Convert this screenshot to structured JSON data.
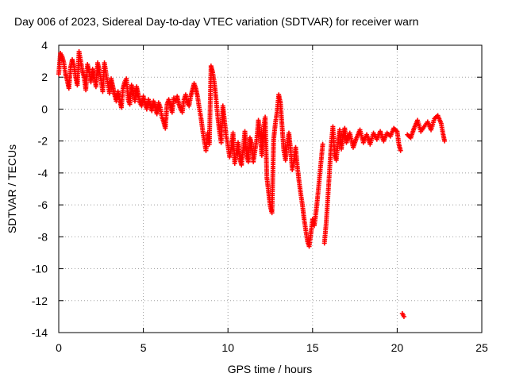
{
  "chart_data": {
    "type": "scatter",
    "title": "Day 006 of 2023, Sidereal Day-to-day VTEC variation (SDTVAR) for receiver warn",
    "xlabel": "GPS time / hours",
    "ylabel": "SDTVAR / TECUs",
    "xlim": [
      0,
      25
    ],
    "ylim": [
      -14,
      4
    ],
    "xticks": [
      "0",
      "5",
      "10",
      "15",
      "20",
      "25"
    ],
    "yticks": [
      "4",
      "2",
      "0",
      "-2",
      "-4",
      "-6",
      "-8",
      "-10",
      "-12",
      "-14"
    ],
    "grid": true,
    "marker": "+",
    "color": "#ff0000",
    "series": [
      {
        "name": "SDTVAR",
        "points": [
          [
            0.0,
            2.2
          ],
          [
            0.1,
            3.5
          ],
          [
            0.2,
            3.3
          ],
          [
            0.3,
            2.9
          ],
          [
            0.4,
            2.2
          ],
          [
            0.5,
            1.8
          ],
          [
            0.6,
            1.3
          ],
          [
            0.7,
            2.6
          ],
          [
            0.8,
            3.1
          ],
          [
            0.9,
            2.7
          ],
          [
            1.0,
            2.0
          ],
          [
            1.1,
            1.5
          ],
          [
            1.2,
            3.6
          ],
          [
            1.3,
            3.0
          ],
          [
            1.4,
            2.4
          ],
          [
            1.5,
            2.0
          ],
          [
            1.6,
            1.2
          ],
          [
            1.7,
            2.8
          ],
          [
            1.8,
            2.3
          ],
          [
            1.9,
            1.7
          ],
          [
            2.0,
            2.5
          ],
          [
            2.1,
            2.0
          ],
          [
            2.2,
            1.4
          ],
          [
            2.3,
            2.9
          ],
          [
            2.4,
            2.4
          ],
          [
            2.5,
            1.8
          ],
          [
            2.6,
            1.1
          ],
          [
            2.7,
            2.9
          ],
          [
            2.8,
            2.2
          ],
          [
            2.9,
            1.6
          ],
          [
            3.0,
            1.0
          ],
          [
            3.1,
            1.9
          ],
          [
            3.2,
            1.4
          ],
          [
            3.3,
            0.9
          ],
          [
            3.4,
            0.5
          ],
          [
            3.5,
            1.1
          ],
          [
            3.6,
            0.6
          ],
          [
            3.7,
            0.1
          ],
          [
            3.8,
            1.3
          ],
          [
            3.9,
            1.7
          ],
          [
            4.0,
            1.9
          ],
          [
            4.1,
            0.6
          ],
          [
            4.2,
            0.3
          ],
          [
            4.3,
            1.5
          ],
          [
            4.4,
            1.1
          ],
          [
            4.5,
            0.5
          ],
          [
            4.6,
            1.4
          ],
          [
            4.7,
            0.9
          ],
          [
            4.8,
            0.4
          ],
          [
            4.9,
            0.2
          ],
          [
            5.0,
            0.8
          ],
          [
            5.1,
            0.4
          ],
          [
            5.2,
            0.0
          ],
          [
            5.3,
            0.6
          ],
          [
            5.4,
            0.3
          ],
          [
            5.5,
            -0.1
          ],
          [
            5.6,
            0.5
          ],
          [
            5.7,
            0.2
          ],
          [
            5.8,
            -0.3
          ],
          [
            5.9,
            0.4
          ],
          [
            6.0,
            0.1
          ],
          [
            6.1,
            -0.5
          ],
          [
            6.2,
            -0.8
          ],
          [
            6.3,
            -1.2
          ],
          [
            6.4,
            0.3
          ],
          [
            6.5,
            0.6
          ],
          [
            6.6,
            0.2
          ],
          [
            6.7,
            -0.2
          ],
          [
            6.8,
            0.7
          ],
          [
            6.9,
            0.5
          ],
          [
            7.0,
            0.8
          ],
          [
            7.1,
            0.3
          ],
          [
            7.2,
            0.0
          ],
          [
            7.3,
            -0.2
          ],
          [
            7.4,
            0.6
          ],
          [
            7.5,
            0.9
          ],
          [
            7.6,
            0.4
          ],
          [
            7.7,
            0.2
          ],
          [
            7.8,
            0.8
          ],
          [
            7.9,
            1.2
          ],
          [
            8.0,
            1.6
          ],
          [
            8.1,
            1.3
          ],
          [
            8.2,
            0.8
          ],
          [
            8.3,
            0.1
          ],
          [
            8.4,
            -0.5
          ],
          [
            8.5,
            -1.3
          ],
          [
            8.6,
            -2.0
          ],
          [
            8.7,
            -2.6
          ],
          [
            8.8,
            -1.5
          ],
          [
            8.9,
            -2.2
          ],
          [
            9.0,
            2.7
          ],
          [
            9.1,
            2.3
          ],
          [
            9.2,
            1.6
          ],
          [
            9.3,
            0.6
          ],
          [
            9.4,
            -0.5
          ],
          [
            9.5,
            -1.4
          ],
          [
            9.6,
            -2.1
          ],
          [
            9.7,
            0.2
          ],
          [
            9.8,
            -0.8
          ],
          [
            9.9,
            -1.7
          ],
          [
            10.0,
            -2.3
          ],
          [
            10.1,
            -3.0
          ],
          [
            10.2,
            -2.4
          ],
          [
            10.3,
            -1.5
          ],
          [
            10.4,
            -3.4
          ],
          [
            10.5,
            -2.7
          ],
          [
            10.6,
            -2.1
          ],
          [
            10.7,
            -3.1
          ],
          [
            10.8,
            -3.5
          ],
          [
            10.9,
            -2.5
          ],
          [
            11.0,
            -1.4
          ],
          [
            11.1,
            -2.8
          ],
          [
            11.2,
            -3.3
          ],
          [
            11.3,
            -1.8
          ],
          [
            11.4,
            -2.2
          ],
          [
            11.5,
            -3.3
          ],
          [
            11.6,
            -2.6
          ],
          [
            11.7,
            -1.9
          ],
          [
            11.8,
            -0.7
          ],
          [
            11.9,
            -1.5
          ],
          [
            12.0,
            -2.9
          ],
          [
            12.1,
            -1.2
          ],
          [
            12.2,
            -0.5
          ],
          [
            12.3,
            -4.3
          ],
          [
            12.4,
            -5.2
          ],
          [
            12.5,
            -6.1
          ],
          [
            12.6,
            -6.5
          ],
          [
            12.7,
            -1.9
          ],
          [
            12.8,
            -0.9
          ],
          [
            12.9,
            -0.2
          ],
          [
            13.0,
            0.9
          ],
          [
            13.1,
            0.4
          ],
          [
            13.2,
            -1.1
          ],
          [
            13.3,
            -2.6
          ],
          [
            13.4,
            -3.2
          ],
          [
            13.5,
            -2.2
          ],
          [
            13.6,
            -1.5
          ],
          [
            13.7,
            -2.5
          ],
          [
            13.8,
            -3.8
          ],
          [
            13.9,
            -3.2
          ],
          [
            14.0,
            -2.4
          ],
          [
            14.1,
            -3.6
          ],
          [
            14.2,
            -4.5
          ],
          [
            14.3,
            -5.3
          ],
          [
            14.4,
            -6.0
          ],
          [
            14.5,
            -6.9
          ],
          [
            14.6,
            -7.6
          ],
          [
            14.7,
            -8.3
          ],
          [
            14.8,
            -8.6
          ],
          [
            14.9,
            -7.8
          ],
          [
            15.0,
            -6.9
          ],
          [
            15.1,
            -7.3
          ],
          [
            15.2,
            -6.5
          ],
          [
            15.3,
            -5.5
          ],
          [
            15.4,
            -4.4
          ],
          [
            15.5,
            -3.3
          ],
          [
            15.6,
            -2.2
          ],
          [
            15.7,
            -8.4
          ],
          [
            15.8,
            -7.2
          ],
          [
            15.9,
            -5.6
          ],
          [
            16.0,
            -3.9
          ],
          [
            16.1,
            -2.2
          ],
          [
            16.2,
            -1.1
          ],
          [
            16.3,
            -2.8
          ],
          [
            16.4,
            -3.2
          ],
          [
            16.5,
            -2.1
          ],
          [
            16.6,
            -1.3
          ],
          [
            16.7,
            -2.5
          ],
          [
            16.8,
            -1.7
          ],
          [
            16.9,
            -1.2
          ],
          [
            17.0,
            -2.1
          ],
          [
            17.2,
            -1.5
          ],
          [
            17.4,
            -2.4
          ],
          [
            17.6,
            -1.8
          ],
          [
            17.8,
            -1.3
          ],
          [
            18.0,
            -2.1
          ],
          [
            18.2,
            -1.6
          ],
          [
            18.4,
            -2.2
          ],
          [
            18.6,
            -1.5
          ],
          [
            18.8,
            -1.9
          ],
          [
            19.0,
            -1.4
          ],
          [
            19.2,
            -2.0
          ],
          [
            19.4,
            -1.5
          ],
          [
            19.6,
            -1.7
          ],
          [
            19.8,
            -1.2
          ],
          [
            20.0,
            -1.4
          ],
          [
            20.1,
            -2.2
          ],
          [
            20.2,
            -2.6
          ],
          [
            20.3,
            -12.8
          ],
          [
            20.4,
            -13.0
          ],
          [
            20.6,
            -1.6
          ],
          [
            20.8,
            -1.8
          ],
          [
            21.0,
            -1.2
          ],
          [
            21.2,
            -0.7
          ],
          [
            21.4,
            -1.4
          ],
          [
            21.6,
            -1.1
          ],
          [
            21.8,
            -0.8
          ],
          [
            22.0,
            -1.3
          ],
          [
            22.2,
            -0.6
          ],
          [
            22.4,
            -0.4
          ],
          [
            22.6,
            -0.9
          ],
          [
            22.7,
            -1.5
          ],
          [
            22.8,
            -2.0
          ]
        ]
      }
    ]
  }
}
